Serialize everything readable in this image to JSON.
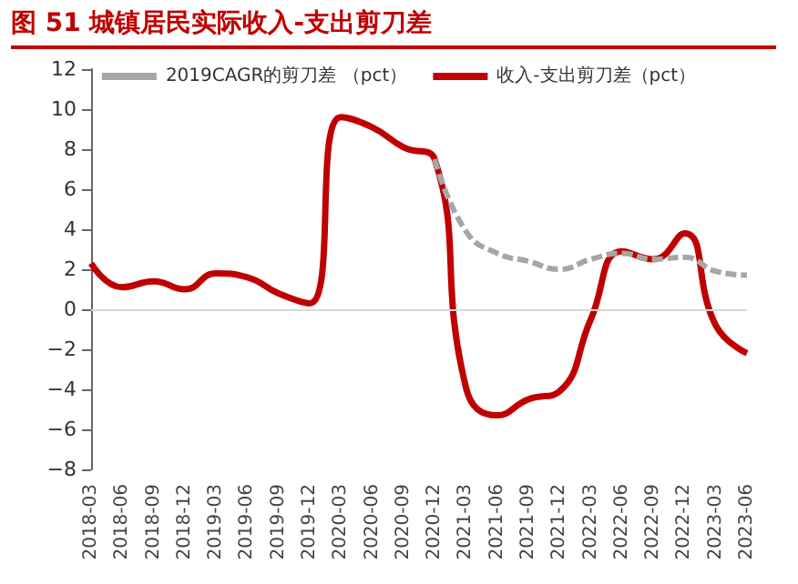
{
  "chart_data": {
    "type": "line",
    "title": "图 51    城镇居民实际收入-支出剪刀差",
    "categories": [
      "2018-03",
      "2018-06",
      "2018-09",
      "2018-12",
      "2019-03",
      "2019-06",
      "2019-09",
      "2019-12",
      "2020-03",
      "2020-06",
      "2020-09",
      "2020-12",
      "2021-03",
      "2021-06",
      "2021-09",
      "2021-12",
      "2022-03",
      "2022-06",
      "2022-09",
      "2022-12",
      "2023-03",
      "2023-06"
    ],
    "series": [
      {
        "name": "2019CAGR的剪刀差 （pct）",
        "color": "#a6a6a6",
        "line_style": "dashed",
        "values": [
          null,
          null,
          null,
          null,
          null,
          null,
          null,
          null,
          null,
          null,
          null,
          7.5,
          3.9,
          2.8,
          2.4,
          2.0,
          2.5,
          2.8,
          2.5,
          2.6,
          1.9,
          1.7
        ]
      },
      {
        "name": "收入-支出剪刀差（pct）",
        "color": "#c00000",
        "line_style": "solid",
        "values": [
          2.3,
          1.1,
          1.4,
          1.0,
          1.8,
          1.6,
          0.8,
          0.3,
          9.6,
          9.1,
          8.1,
          7.5,
          -3.9,
          -5.3,
          -4.5,
          -4.1,
          -0.5,
          2.9,
          2.5,
          3.8,
          -0.8,
          -2.2
        ]
      }
    ],
    "ylim": [
      -8,
      12
    ],
    "yticks": [
      -8,
      -6,
      -4,
      -2,
      0,
      2,
      4,
      6,
      8,
      10,
      12
    ],
    "ref_lines": [
      {
        "axis": "y",
        "value": 0,
        "color": "#d9d9d9"
      }
    ],
    "grid": false,
    "legend": "top",
    "marker": "none"
  }
}
